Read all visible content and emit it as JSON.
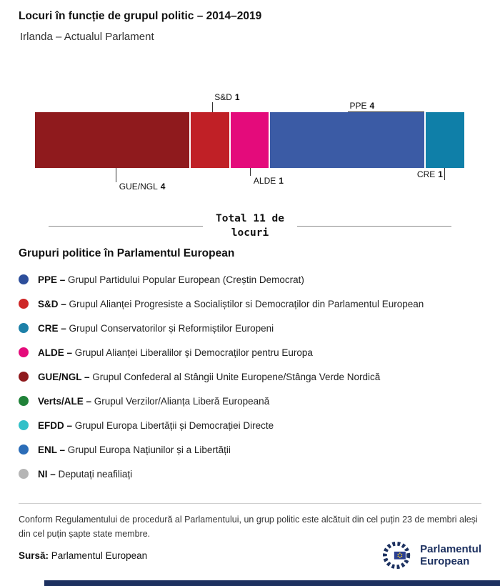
{
  "header": {
    "title": "Locuri în funcție de grupul politic – 2014–2019",
    "subtitle": "Irlanda – Actualul Parlament"
  },
  "chart_data": {
    "type": "bar",
    "title": "Locuri în funcție de grupul politic – 2014–2019",
    "subtitle": "Irlanda – Actualul Parlament",
    "total": 11,
    "total_label": "Total 11 de\nlocuri",
    "orientation": "horizontal-stacked",
    "segments": [
      {
        "group": "GUE/NGL",
        "seats": 4,
        "color": "#8f1a1d",
        "label_position": "below"
      },
      {
        "group": "S&D",
        "seats": 1,
        "color": "#c02026",
        "label_position": "above"
      },
      {
        "group": "ALDE",
        "seats": 1,
        "color": "#e40b7b",
        "label_position": "below"
      },
      {
        "group": "PPE",
        "seats": 4,
        "color": "#3b5ba5",
        "label_position": "above"
      },
      {
        "group": "CRE",
        "seats": 1,
        "color": "#0f7fa8",
        "label_position": "below"
      }
    ]
  },
  "legend": {
    "heading": "Grupuri politice în Parlamentul European",
    "items": [
      {
        "abbr": "PPE –",
        "desc": "Grupul Partidului Popular European (Creștin Democrat)",
        "color": "#2d4e9b"
      },
      {
        "abbr": "S&D –",
        "desc": "Grupul Alianței Progresiste a Socialiștilor si Democraților din Parlamentul European",
        "color": "#ce2626"
      },
      {
        "abbr": "CRE –",
        "desc": "Grupul Conservatorilor și Reformiștilor Europeni",
        "color": "#1d80a8"
      },
      {
        "abbr": "ALDE –",
        "desc": "Grupul Alianței Liberalilor și Democraților pentru Europa",
        "color": "#e40b7b"
      },
      {
        "abbr": "GUE/NGL –",
        "desc": "Grupul Confederal al Stângii Unite Europene/Stânga Verde Nordică",
        "color": "#8f1a1d"
      },
      {
        "abbr": "Verts/ALE –",
        "desc": "Grupul Verzilor/Alianța Liberă Europeană",
        "color": "#208239"
      },
      {
        "abbr": "EFDD –",
        "desc": "Grupul Europa Libertății și Democrației Directe",
        "color": "#32c0c8"
      },
      {
        "abbr": "ENL –",
        "desc": "Grupul Europa Națiunilor și a Libertății",
        "color": "#2b6db8"
      },
      {
        "abbr": "NI –",
        "desc": "Deputați neafiliați",
        "color": "#b5b5b5"
      }
    ]
  },
  "footnote": "Conform Regulamentului de procedură al Parlamentului, un grup politic este alcătuit din cel puțin 23 de membri aleși din cel puțin șapte state membre.",
  "source": {
    "label": "Sursă:",
    "value": "Parlamentul European"
  },
  "logo": {
    "line1": "Parlamentul",
    "line2": "European"
  },
  "colors": {
    "brand_navy": "#1d3160"
  }
}
